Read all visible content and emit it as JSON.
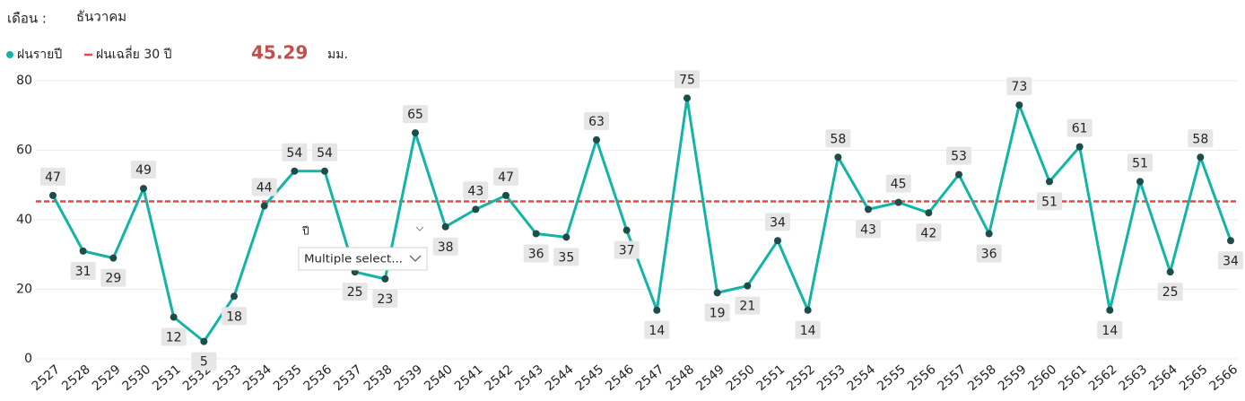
{
  "chart_data": {
    "type": "line",
    "filter_label": "เดือน :",
    "filter_value": "ธันวาคม",
    "unit": "มม.",
    "categories": [
      "2527",
      "2528",
      "2529",
      "2530",
      "2531",
      "2532",
      "2533",
      "2534",
      "2535",
      "2536",
      "2537",
      "2538",
      "2539",
      "2540",
      "2541",
      "2542",
      "2543",
      "2544",
      "2545",
      "2546",
      "2547",
      "2548",
      "2549",
      "2550",
      "2551",
      "2552",
      "2553",
      "2554",
      "2555",
      "2556",
      "2557",
      "2558",
      "2559",
      "2560",
      "2561",
      "2562",
      "2563",
      "2564",
      "2565",
      "2566"
    ],
    "series": [
      {
        "name": "ฝนรายปี",
        "color": "#12b5a5",
        "marker_color": "#1d4d48",
        "values": [
          47,
          31,
          29,
          49,
          12,
          5,
          18,
          44,
          54,
          54,
          25,
          23,
          65,
          38,
          43,
          47,
          36,
          35,
          63,
          37,
          14,
          75,
          19,
          21,
          34,
          14,
          58,
          43,
          45,
          42,
          53,
          36,
          73,
          51,
          61,
          14,
          51,
          25,
          58,
          34
        ]
      }
    ],
    "reference": {
      "name": "ฝนเฉลี่ย 30 ปี",
      "value": 45.29,
      "color": "#e8474a"
    },
    "ylim": [
      0,
      80
    ],
    "yticks": [
      0,
      20,
      40,
      60,
      80
    ],
    "grid": true
  },
  "slicer": {
    "title": "ปี",
    "placeholder": "Multiple select..."
  }
}
